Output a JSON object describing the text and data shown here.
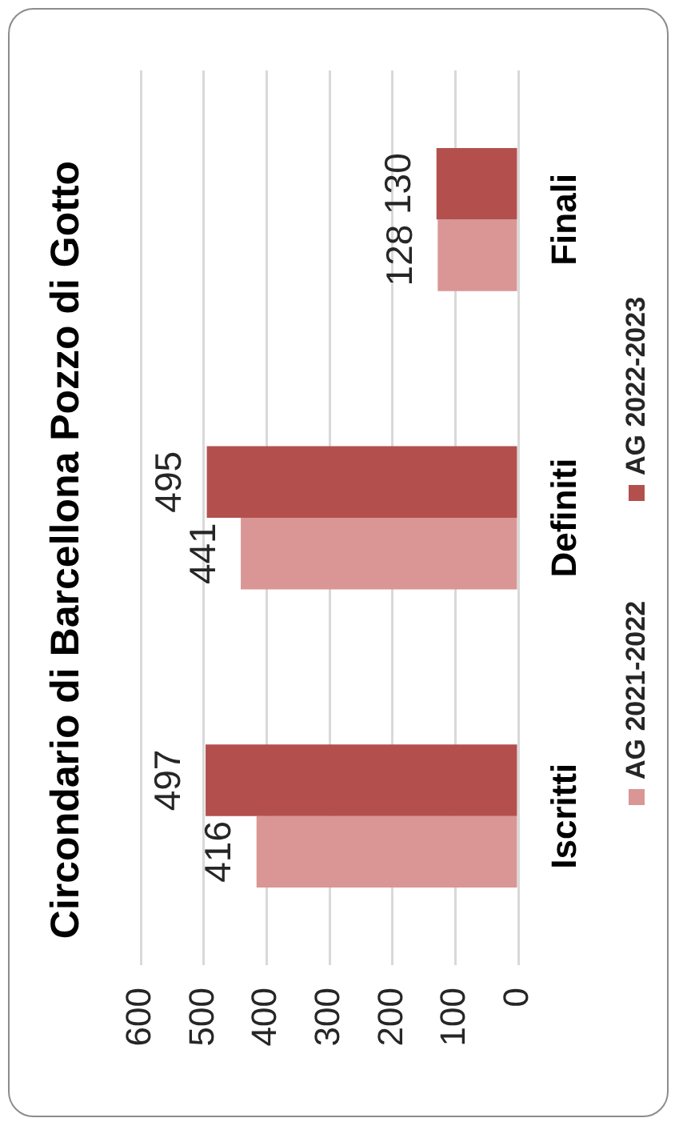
{
  "chart_data": {
    "type": "bar",
    "orientation": "horizontal",
    "title": "Circondario di Barcellona Pozzo di Gotto",
    "categories": [
      "Finali",
      "Definiti",
      "Iscritti"
    ],
    "series": [
      {
        "name": "AG 2021-2022",
        "color": "#d99694",
        "values": [
          128,
          441,
          416
        ]
      },
      {
        "name": "AG 2022-2023",
        "color": "#b3504d",
        "values": [
          130,
          495,
          497
        ]
      }
    ],
    "xlim": [
      600,
      0
    ],
    "xticks": [
      600,
      500,
      400,
      300,
      200,
      100,
      0
    ],
    "grid": "x",
    "legend": "right",
    "data_labels": true
  }
}
